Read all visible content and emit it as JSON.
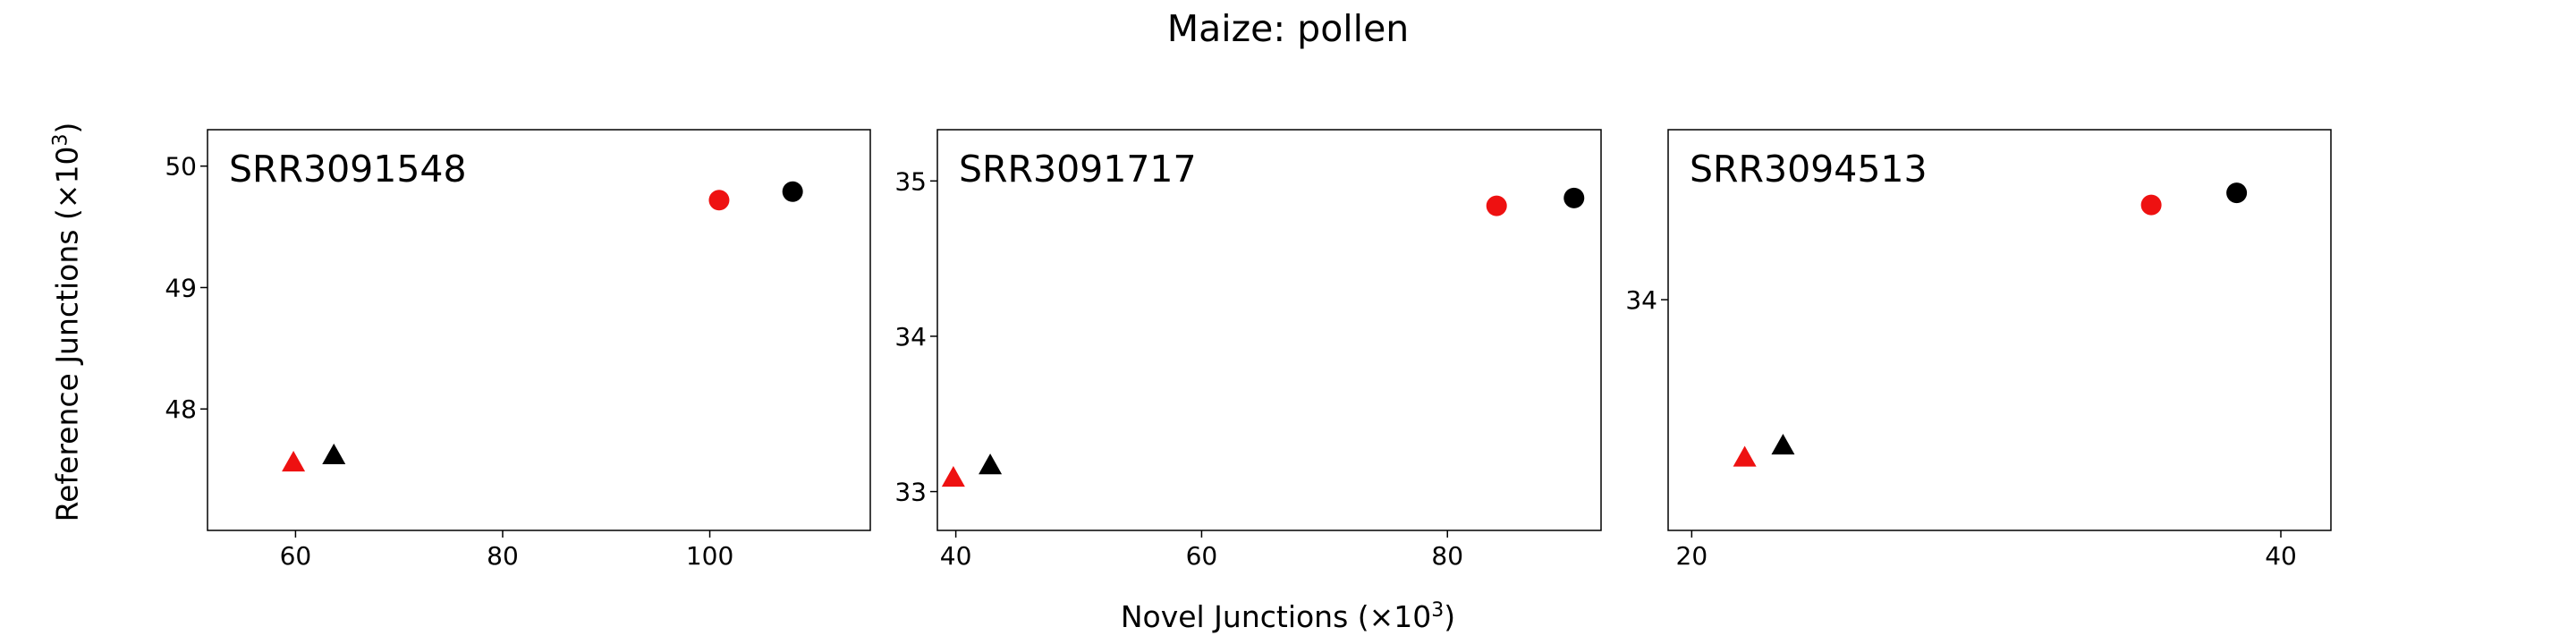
{
  "figure": {
    "title": "Maize: pollen",
    "xlabel_prefix": "Novel Junctions (×10",
    "xlabel_exp": "3",
    "xlabel_suffix": ")",
    "ylabel_prefix": "Reference Junctions (×10",
    "ylabel_exp": "3",
    "ylabel_suffix": ")"
  },
  "colors": {
    "red": "#ee1111",
    "black": "#000000"
  },
  "chart_data": [
    {
      "type": "scatter",
      "title": "SRR3091548",
      "xlim": [
        51.5,
        115.5
      ],
      "ylim": [
        47.0,
        50.3
      ],
      "xticks": [
        60,
        80,
        100
      ],
      "yticks": [
        48,
        49,
        50
      ],
      "points": [
        {
          "x": 108.0,
          "y": 49.79,
          "marker": "circle",
          "color": "black"
        },
        {
          "x": 100.9,
          "y": 49.72,
          "marker": "circle",
          "color": "red"
        },
        {
          "x": 63.7,
          "y": 47.62,
          "marker": "triangle",
          "color": "black"
        },
        {
          "x": 59.8,
          "y": 47.56,
          "marker": "triangle",
          "color": "red"
        }
      ]
    },
    {
      "type": "scatter",
      "title": "SRR3091717",
      "xlim": [
        38.5,
        92.5
      ],
      "ylim": [
        32.75,
        35.33
      ],
      "xticks": [
        40,
        60,
        80
      ],
      "yticks": [
        33,
        34,
        35
      ],
      "points": [
        {
          "x": 90.3,
          "y": 34.89,
          "marker": "circle",
          "color": "black"
        },
        {
          "x": 84.0,
          "y": 34.84,
          "marker": "circle",
          "color": "red"
        },
        {
          "x": 42.8,
          "y": 33.17,
          "marker": "triangle",
          "color": "black"
        },
        {
          "x": 39.8,
          "y": 33.09,
          "marker": "triangle",
          "color": "red"
        }
      ]
    },
    {
      "type": "scatter",
      "title": "SRR3094513",
      "xlim": [
        19.2,
        41.7
      ],
      "ylim": [
        33.05,
        34.7
      ],
      "xticks": [
        20,
        40
      ],
      "yticks": [
        34
      ],
      "points": [
        {
          "x": 38.5,
          "y": 34.44,
          "marker": "circle",
          "color": "black"
        },
        {
          "x": 35.6,
          "y": 34.39,
          "marker": "circle",
          "color": "red"
        },
        {
          "x": 23.1,
          "y": 33.4,
          "marker": "triangle",
          "color": "black"
        },
        {
          "x": 21.8,
          "y": 33.35,
          "marker": "triangle",
          "color": "red"
        }
      ]
    }
  ]
}
